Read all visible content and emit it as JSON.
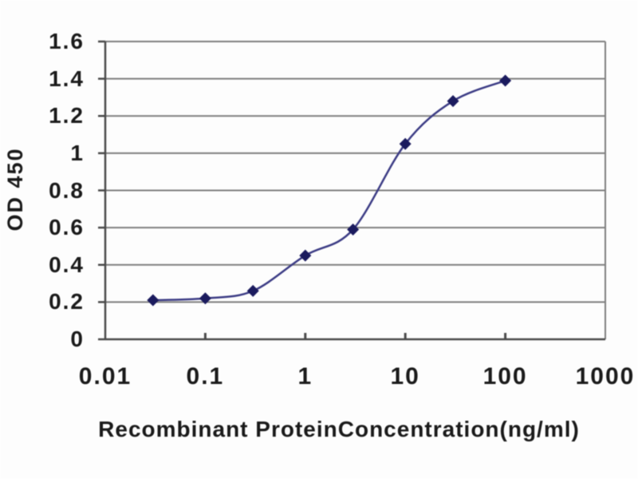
{
  "figure": {
    "background": "#fdfdfd",
    "text_color": "#1a1a1a"
  },
  "chart_data": {
    "type": "line",
    "title": "",
    "xlabel": "Recombinant ProteinConcentration(ng/ml)",
    "ylabel": "OD 450",
    "x_scale": "log",
    "y_scale": "linear",
    "xlim": [
      0.01,
      1000
    ],
    "ylim": [
      0,
      1.6
    ],
    "x_tick_labels": [
      "0.01",
      "0.1",
      "1",
      "10",
      "100",
      "1000"
    ],
    "x_tick_values": [
      0.01,
      0.1,
      1,
      10,
      100,
      1000
    ],
    "y_tick_labels": [
      "0",
      "0.2",
      "0.4",
      "0.6",
      "0.8",
      "1",
      "1.2",
      "1.4",
      "1.6"
    ],
    "y_tick_values": [
      0,
      0.2,
      0.4,
      0.6,
      0.8,
      1,
      1.2,
      1.4,
      1.6
    ],
    "grid": "horizontal",
    "legend": "none",
    "series": [
      {
        "name": "OD 450",
        "marker": "diamond",
        "line_color": "#3c3c85",
        "marker_color": "#1b1b5e",
        "x": [
          0.03,
          0.1,
          0.3,
          1,
          3,
          10,
          30,
          100
        ],
        "y": [
          0.21,
          0.22,
          0.26,
          0.45,
          0.59,
          1.05,
          1.28,
          1.39
        ]
      }
    ],
    "colors": {
      "gridline": "#7f7f7f",
      "axis": "#4a4a4a",
      "plot_background": "#fdfdfd"
    }
  }
}
